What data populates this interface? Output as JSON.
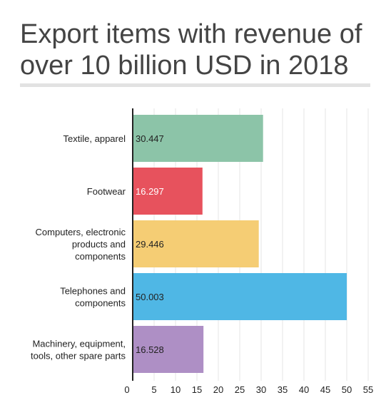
{
  "chart_data": {
    "type": "bar",
    "orientation": "horizontal",
    "title": "Export items with revenue of over 10 billion USD in 2018",
    "categories": [
      "Textile, apparel",
      "Footwear",
      "Computers, electronic products and components",
      "Telephones and components",
      "Machinery, equipment, tools, other spare parts"
    ],
    "category_lines": [
      [
        "Textile, apparel"
      ],
      [
        "Footwear"
      ],
      [
        "Computers, electronic",
        "products and",
        "components"
      ],
      [
        "Telephones and",
        "components"
      ],
      [
        "Machinery, equipment,",
        "tools, other spare parts"
      ]
    ],
    "values": [
      30.447,
      16.297,
      29.446,
      50.003,
      16.528
    ],
    "value_labels": [
      "30.447",
      "16.297",
      "29.446",
      "50.003",
      "16.528"
    ],
    "colors": [
      "#8cc4a8",
      "#e7525d",
      "#f5cd74",
      "#4fb7e5",
      "#ae8fc5"
    ],
    "value_label_colors": [
      "#222222",
      "#ffffff",
      "#222222",
      "#222222",
      "#222222"
    ],
    "xlim": [
      0,
      55
    ],
    "xticks": [
      0,
      5,
      10,
      15,
      20,
      25,
      30,
      35,
      40,
      45,
      50,
      55
    ],
    "xlabel": "",
    "ylabel": "",
    "grid": true,
    "legend": "none"
  }
}
